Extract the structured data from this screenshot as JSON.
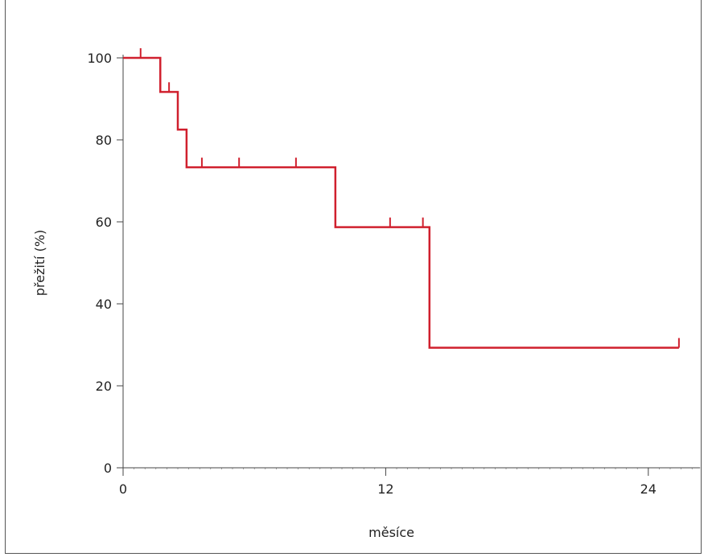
{
  "chart_data": {
    "type": "line",
    "title": "",
    "xlabel": "měsíce",
    "ylabel": "přežití (%)",
    "xlim": [
      0,
      26
    ],
    "ylim": [
      0,
      100
    ],
    "x_ticks": [
      0,
      12,
      24
    ],
    "y_ticks": [
      0,
      20,
      40,
      60,
      80,
      100
    ],
    "grid": false,
    "series": [
      {
        "color": "#d0202e",
        "step": true,
        "points": [
          {
            "x": 0,
            "y": 100
          },
          {
            "x": 1.7,
            "y": 91.7
          },
          {
            "x": 2.5,
            "y": 82.5
          },
          {
            "x": 2.9,
            "y": 73.3
          },
          {
            "x": 9.7,
            "y": 58.7
          },
          {
            "x": 14.0,
            "y": 29.3
          },
          {
            "x": 25.4,
            "y": 29.3
          }
        ],
        "censored": [
          {
            "x": 0.8,
            "y": 100
          },
          {
            "x": 2.1,
            "y": 91.7
          },
          {
            "x": 3.6,
            "y": 73.3
          },
          {
            "x": 5.3,
            "y": 73.3
          },
          {
            "x": 7.9,
            "y": 73.3
          },
          {
            "x": 12.2,
            "y": 58.7
          },
          {
            "x": 13.7,
            "y": 58.7
          },
          {
            "x": 25.4,
            "y": 29.3
          }
        ]
      }
    ]
  }
}
